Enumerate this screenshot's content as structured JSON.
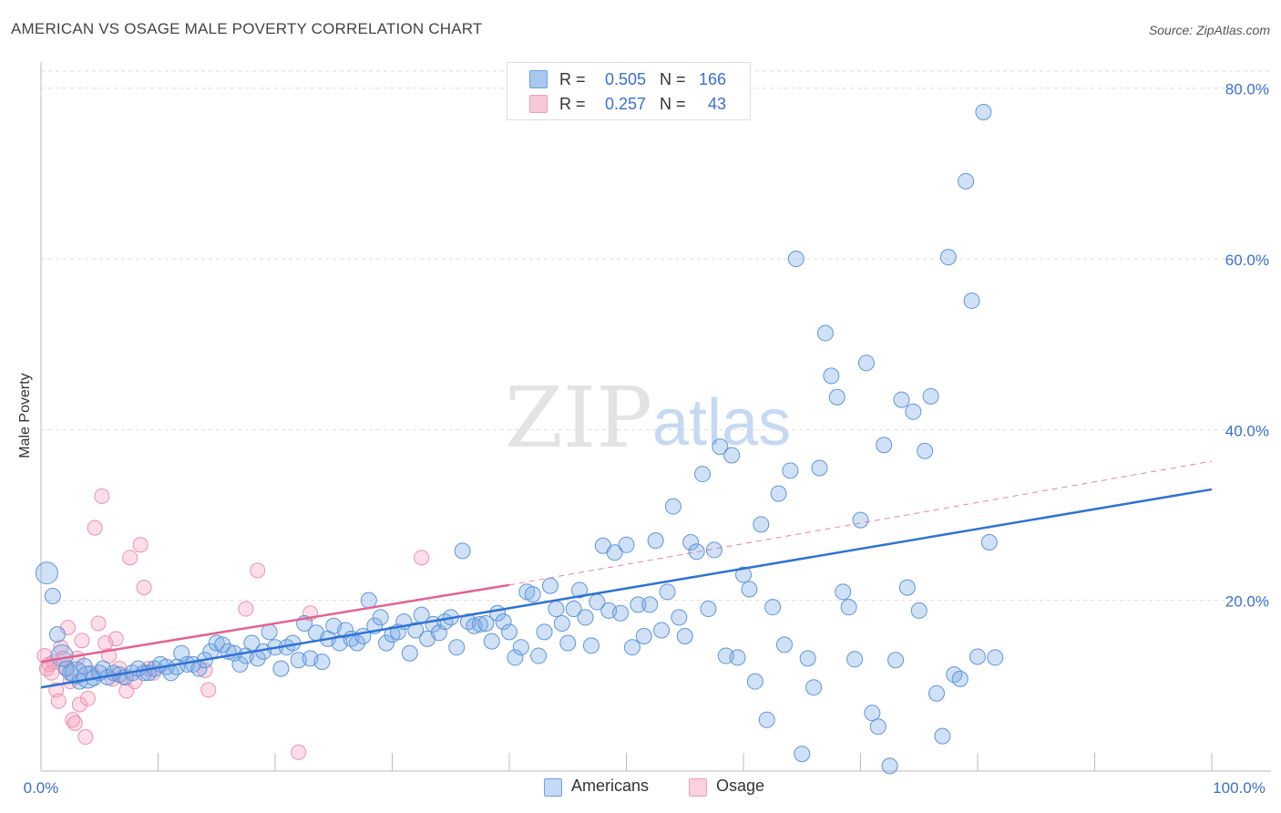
{
  "title": "AMERICAN VS OSAGE MALE POVERTY CORRELATION CHART",
  "source": "Source: ZipAtlas.com",
  "watermark": {
    "zip": "ZIP",
    "atlas": "atlas"
  },
  "legend_top": {
    "rows": [
      {
        "r_label": "R =",
        "r_value": "0.505",
        "n_label": "N =",
        "n_value": "166",
        "color": "#a8c8f0"
      },
      {
        "r_label": "R =",
        "r_value": "0.257",
        "n_label": "N =",
        "n_value": "43",
        "color": "#f6b8ca"
      }
    ]
  },
  "legend_bottom": [
    {
      "label": "Americans",
      "color": "#a8c8f0"
    },
    {
      "label": "Osage",
      "color": "#f6b8ca"
    }
  ],
  "colors": {
    "americans_fill": "rgba(120,170,230,0.35)",
    "americans_stroke": "#5f95db",
    "americans_line": "#2f72d4",
    "osage_fill": "rgba(245,160,185,0.35)",
    "osage_stroke": "#ee8fae",
    "osage_line": "#e2628f",
    "tick_label": "#3a6fd0",
    "grid": "#dddddd"
  },
  "chart_data": {
    "type": "scatter",
    "title": "AMERICAN VS OSAGE MALE POVERTY CORRELATION CHART",
    "xlabel": "",
    "ylabel": "Male Poverty",
    "xlim": [
      0,
      100
    ],
    "ylim": [
      0,
      82
    ],
    "x_tick_labels": [
      "0.0%",
      "100.0%"
    ],
    "y_ticks": [
      20,
      40,
      60,
      80
    ],
    "y_tick_labels": [
      "20.0%",
      "40.0%",
      "60.0%",
      "80.0%"
    ],
    "grid": true,
    "legend_position": "bottom",
    "series": [
      {
        "name": "Americans",
        "r": 0.505,
        "n": 166,
        "trend": {
          "x": [
            0,
            100
          ],
          "y": [
            9.8,
            33.0
          ]
        },
        "points": [
          [
            0.5,
            23.2
          ],
          [
            1.0,
            20.5
          ],
          [
            1.4,
            16.0
          ],
          [
            1.8,
            13.5
          ],
          [
            2.2,
            12.0
          ],
          [
            2.5,
            11.5
          ],
          [
            3.0,
            11.5
          ],
          [
            3.3,
            10.5
          ],
          [
            3.7,
            12.3
          ],
          [
            4.0,
            11.0
          ],
          [
            4.5,
            10.9
          ],
          [
            5.0,
            11.5
          ],
          [
            5.3,
            12.0
          ],
          [
            5.7,
            11.0
          ],
          [
            6.2,
            11.5
          ],
          [
            6.7,
            11.3
          ],
          [
            7.2,
            11.0
          ],
          [
            7.8,
            11.5
          ],
          [
            8.3,
            12.0
          ],
          [
            8.8,
            11.5
          ],
          [
            9.2,
            11.5
          ],
          [
            9.7,
            12.0
          ],
          [
            10.2,
            12.5
          ],
          [
            10.7,
            12.2
          ],
          [
            11.1,
            11.5
          ],
          [
            11.6,
            12.2
          ],
          [
            12.0,
            13.8
          ],
          [
            12.5,
            12.5
          ],
          [
            13.0,
            12.5
          ],
          [
            13.5,
            12.0
          ],
          [
            14.0,
            13.0
          ],
          [
            14.5,
            14.0
          ],
          [
            15.0,
            15.0
          ],
          [
            15.5,
            14.8
          ],
          [
            16.0,
            14.0
          ],
          [
            16.5,
            13.8
          ],
          [
            17.0,
            12.5
          ],
          [
            17.5,
            13.5
          ],
          [
            18.0,
            15.0
          ],
          [
            18.5,
            13.2
          ],
          [
            19.0,
            14.0
          ],
          [
            19.5,
            16.3
          ],
          [
            20.0,
            14.5
          ],
          [
            20.5,
            12.0
          ],
          [
            21.0,
            14.5
          ],
          [
            21.5,
            15.0
          ],
          [
            22.0,
            13.0
          ],
          [
            22.5,
            17.3
          ],
          [
            23.0,
            13.2
          ],
          [
            23.5,
            16.2
          ],
          [
            24.0,
            12.8
          ],
          [
            24.5,
            15.5
          ],
          [
            25.0,
            17.0
          ],
          [
            25.5,
            15.0
          ],
          [
            26.0,
            16.5
          ],
          [
            26.5,
            15.5
          ],
          [
            27.0,
            15.0
          ],
          [
            27.5,
            15.8
          ],
          [
            28.0,
            20.0
          ],
          [
            28.5,
            17.0
          ],
          [
            29.0,
            18.0
          ],
          [
            29.5,
            15.0
          ],
          [
            30.0,
            16.0
          ],
          [
            30.5,
            16.3
          ],
          [
            31.0,
            17.5
          ],
          [
            31.5,
            13.8
          ],
          [
            32.0,
            16.5
          ],
          [
            32.5,
            18.3
          ],
          [
            33.0,
            15.5
          ],
          [
            33.5,
            17.2
          ],
          [
            34.0,
            16.2
          ],
          [
            34.5,
            17.5
          ],
          [
            35.0,
            18.0
          ],
          [
            35.5,
            14.5
          ],
          [
            36.0,
            25.8
          ],
          [
            36.5,
            17.5
          ],
          [
            37.0,
            17.0
          ],
          [
            37.5,
            17.2
          ],
          [
            38.0,
            17.3
          ],
          [
            38.5,
            15.2
          ],
          [
            39.0,
            18.5
          ],
          [
            39.5,
            17.5
          ],
          [
            40.0,
            16.3
          ],
          [
            40.5,
            13.3
          ],
          [
            41.0,
            14.5
          ],
          [
            41.5,
            21.0
          ],
          [
            42.0,
            20.7
          ],
          [
            42.5,
            13.5
          ],
          [
            43.0,
            16.3
          ],
          [
            43.5,
            21.7
          ],
          [
            44.0,
            19.0
          ],
          [
            44.5,
            17.3
          ],
          [
            45.0,
            15.0
          ],
          [
            45.5,
            19.0
          ],
          [
            46.0,
            21.2
          ],
          [
            46.5,
            18.0
          ],
          [
            47.0,
            14.7
          ],
          [
            47.5,
            19.8
          ],
          [
            48.0,
            26.4
          ],
          [
            48.5,
            18.8
          ],
          [
            49.0,
            25.6
          ],
          [
            49.5,
            18.5
          ],
          [
            50.0,
            26.5
          ],
          [
            50.5,
            14.5
          ],
          [
            51.0,
            19.5
          ],
          [
            51.5,
            15.8
          ],
          [
            52.0,
            19.5
          ],
          [
            52.5,
            27.0
          ],
          [
            53.0,
            16.5
          ],
          [
            53.5,
            21.0
          ],
          [
            54.0,
            31.0
          ],
          [
            54.5,
            18.0
          ],
          [
            55.0,
            15.8
          ],
          [
            55.5,
            26.8
          ],
          [
            56.0,
            25.7
          ],
          [
            56.5,
            34.8
          ],
          [
            57.0,
            19.0
          ],
          [
            57.5,
            25.9
          ],
          [
            58.0,
            38.0
          ],
          [
            58.5,
            13.5
          ],
          [
            59.0,
            37.0
          ],
          [
            59.5,
            13.3
          ],
          [
            60.0,
            23.0
          ],
          [
            60.5,
            21.3
          ],
          [
            61.0,
            10.5
          ],
          [
            61.5,
            28.9
          ],
          [
            62.0,
            6.0
          ],
          [
            62.5,
            19.2
          ],
          [
            63.0,
            32.5
          ],
          [
            63.5,
            14.8
          ],
          [
            64.0,
            35.2
          ],
          [
            64.5,
            60.0
          ],
          [
            65.0,
            2.0
          ],
          [
            65.5,
            13.2
          ],
          [
            66.0,
            9.8
          ],
          [
            66.5,
            35.5
          ],
          [
            67.0,
            51.3
          ],
          [
            67.5,
            46.3
          ],
          [
            68.0,
            43.8
          ],
          [
            68.5,
            21.0
          ],
          [
            69.0,
            19.2
          ],
          [
            69.5,
            13.1
          ],
          [
            70.0,
            29.4
          ],
          [
            70.5,
            47.8
          ],
          [
            71.0,
            6.8
          ],
          [
            71.5,
            5.2
          ],
          [
            72.0,
            38.2
          ],
          [
            72.5,
            0.6
          ],
          [
            73.0,
            13.0
          ],
          [
            73.5,
            43.5
          ],
          [
            74.0,
            21.5
          ],
          [
            74.5,
            42.1
          ],
          [
            75.0,
            18.8
          ],
          [
            75.5,
            37.5
          ],
          [
            76.0,
            43.9
          ],
          [
            76.5,
            9.1
          ],
          [
            77.0,
            4.1
          ],
          [
            77.5,
            60.2
          ],
          [
            78.0,
            11.3
          ],
          [
            78.5,
            10.8
          ],
          [
            79.0,
            69.1
          ],
          [
            79.5,
            55.1
          ],
          [
            80.0,
            13.4
          ],
          [
            80.5,
            77.2
          ],
          [
            81.0,
            26.8
          ],
          [
            81.5,
            13.3
          ]
        ]
      },
      {
        "name": "Osage",
        "r": 0.257,
        "n": 43,
        "trend": {
          "x": [
            0,
            40
          ],
          "y": [
            12.8,
            21.8
          ]
        },
        "trend_dashed": {
          "x": [
            40,
            100
          ],
          "y": [
            21.8,
            36.3
          ]
        },
        "points": [
          [
            0.3,
            13.5
          ],
          [
            0.5,
            12.0
          ],
          [
            0.7,
            12.5
          ],
          [
            0.9,
            11.5
          ],
          [
            1.1,
            12.8
          ],
          [
            1.3,
            9.5
          ],
          [
            1.5,
            8.2
          ],
          [
            1.7,
            14.5
          ],
          [
            1.9,
            13.2
          ],
          [
            2.1,
            12.0
          ],
          [
            2.3,
            16.8
          ],
          [
            2.5,
            10.5
          ],
          [
            2.7,
            6.0
          ],
          [
            2.9,
            5.6
          ],
          [
            3.1,
            13.2
          ],
          [
            3.3,
            7.8
          ],
          [
            3.5,
            15.3
          ],
          [
            3.8,
            4.0
          ],
          [
            4.0,
            8.5
          ],
          [
            4.3,
            11.5
          ],
          [
            4.6,
            28.5
          ],
          [
            4.9,
            17.3
          ],
          [
            5.2,
            32.2
          ],
          [
            5.5,
            15.0
          ],
          [
            5.8,
            13.5
          ],
          [
            6.1,
            10.8
          ],
          [
            6.4,
            15.5
          ],
          [
            6.7,
            12.0
          ],
          [
            7.0,
            11.0
          ],
          [
            7.3,
            9.4
          ],
          [
            7.6,
            25.0
          ],
          [
            8.0,
            10.5
          ],
          [
            8.5,
            26.5
          ],
          [
            8.8,
            21.5
          ],
          [
            9.2,
            12.0
          ],
          [
            9.6,
            11.5
          ],
          [
            14.0,
            11.8
          ],
          [
            14.3,
            9.5
          ],
          [
            17.5,
            19.0
          ],
          [
            18.5,
            23.5
          ],
          [
            22.0,
            2.2
          ],
          [
            23.0,
            18.5
          ],
          [
            32.5,
            25.0
          ]
        ]
      }
    ]
  }
}
